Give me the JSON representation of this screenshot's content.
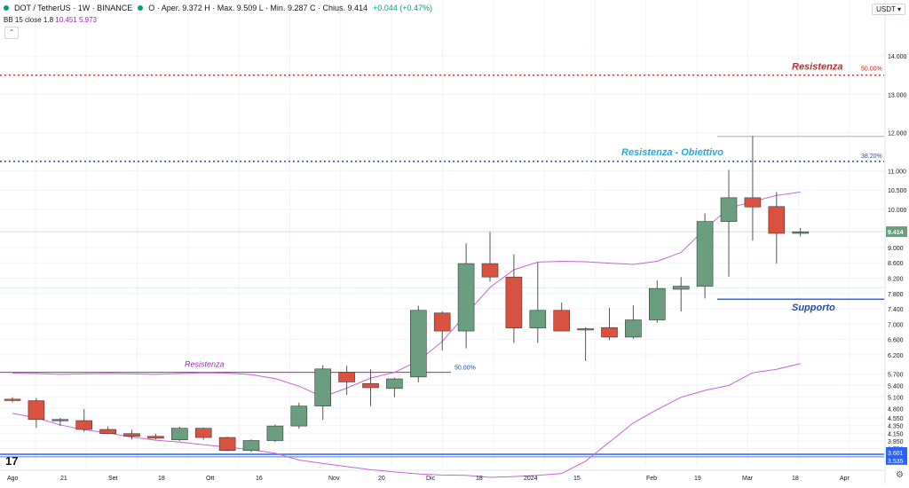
{
  "header": {
    "symbol": "DOT / TetherUS · 1W · BINANCE",
    "ohlc": "O · Aper. 9.372  H · Max. 9.509  L · Min. 9.287  C · Chius. 9.414",
    "change": "+0.044 (+0.47%)"
  },
  "indicator": {
    "label": "BB 15 close 1.8",
    "values": "10.451  5.973"
  },
  "currency": "USDT ▾",
  "logo": "17",
  "colors": {
    "up": "#6b9e7f",
    "down": "#d9513f",
    "band": "#c864d6",
    "accent": "#2962ff"
  },
  "chart_data": {
    "type": "candlestick",
    "title": "DOT / TetherUS · 1W · BINANCE",
    "xlabel": "",
    "ylabel": "",
    "ylim": [
      3.3,
      15.0
    ],
    "y_ticks": [
      "14.000",
      "13.000",
      "12.000",
      "11.000",
      "10.500",
      "10.000",
      "9.500",
      "9.000",
      "8.600",
      "8.200",
      "7.800",
      "7.400",
      "7.000",
      "6.600",
      "6.200",
      "5.700",
      "5.400",
      "5.100",
      "4.800",
      "4.550",
      "4.350",
      "4.150",
      "3.950",
      "3.750"
    ],
    "x_ticks": [
      "Ago",
      "21",
      "Set",
      "18",
      "Ott",
      "16",
      "Nov",
      "20",
      "Dic",
      "18",
      "2024",
      "15",
      "Feb",
      "19",
      "Mar",
      "18",
      "Apr"
    ],
    "last_price": "9.414",
    "candles": [
      {
        "o": 5.04,
        "h": 5.09,
        "l": 4.96,
        "c": 5.01
      },
      {
        "o": 5.0,
        "h": 5.07,
        "l": 4.29,
        "c": 4.51
      },
      {
        "o": 4.51,
        "h": 4.55,
        "l": 4.34,
        "c": 4.48
      },
      {
        "o": 4.48,
        "h": 4.78,
        "l": 4.19,
        "c": 4.25
      },
      {
        "o": 4.25,
        "h": 4.33,
        "l": 4.13,
        "c": 4.14
      },
      {
        "o": 4.14,
        "h": 4.24,
        "l": 3.99,
        "c": 4.07
      },
      {
        "o": 4.07,
        "h": 4.14,
        "l": 3.99,
        "c": 4.02
      },
      {
        "o": 3.98,
        "h": 4.32,
        "l": 3.95,
        "c": 4.28
      },
      {
        "o": 4.28,
        "h": 4.3,
        "l": 3.98,
        "c": 4.04
      },
      {
        "o": 4.04,
        "h": 4.06,
        "l": 3.68,
        "c": 3.7
      },
      {
        "o": 3.7,
        "h": 3.99,
        "l": 3.66,
        "c": 3.96
      },
      {
        "o": 3.96,
        "h": 4.38,
        "l": 3.92,
        "c": 4.34
      },
      {
        "o": 4.34,
        "h": 4.95,
        "l": 4.27,
        "c": 4.86
      },
      {
        "o": 4.86,
        "h": 5.93,
        "l": 4.5,
        "c": 5.83
      },
      {
        "o": 5.74,
        "h": 5.91,
        "l": 5.15,
        "c": 5.49
      },
      {
        "o": 5.45,
        "h": 5.82,
        "l": 4.86,
        "c": 5.34
      },
      {
        "o": 5.32,
        "h": 5.6,
        "l": 5.09,
        "c": 5.57
      },
      {
        "o": 5.62,
        "h": 7.48,
        "l": 5.48,
        "c": 7.36
      },
      {
        "o": 7.29,
        "h": 7.33,
        "l": 6.31,
        "c": 6.82
      },
      {
        "o": 6.82,
        "h": 9.11,
        "l": 6.37,
        "c": 8.58
      },
      {
        "o": 8.58,
        "h": 9.41,
        "l": 8.11,
        "c": 8.23
      },
      {
        "o": 8.23,
        "h": 8.82,
        "l": 6.51,
        "c": 6.9
      },
      {
        "o": 6.9,
        "h": 8.62,
        "l": 6.51,
        "c": 7.36
      },
      {
        "o": 7.36,
        "h": 7.56,
        "l": 6.82,
        "c": 6.82
      },
      {
        "o": 6.86,
        "h": 6.92,
        "l": 6.04,
        "c": 6.88
      },
      {
        "o": 6.91,
        "h": 7.42,
        "l": 6.58,
        "c": 6.66
      },
      {
        "o": 6.66,
        "h": 7.49,
        "l": 6.62,
        "c": 7.11
      },
      {
        "o": 7.11,
        "h": 8.14,
        "l": 7.03,
        "c": 7.93
      },
      {
        "o": 7.91,
        "h": 8.23,
        "l": 7.33,
        "c": 7.99
      },
      {
        "o": 7.99,
        "h": 9.89,
        "l": 7.67,
        "c": 9.68
      },
      {
        "o": 9.68,
        "h": 11.03,
        "l": 8.24,
        "c": 10.3
      },
      {
        "o": 10.3,
        "h": 11.91,
        "l": 9.18,
        "c": 10.06
      },
      {
        "o": 10.07,
        "h": 10.45,
        "l": 8.58,
        "c": 9.37
      },
      {
        "o": 9.37,
        "h": 9.51,
        "l": 9.29,
        "c": 9.41
      }
    ],
    "bands": {
      "upper": [
        5.72,
        5.71,
        5.69,
        5.7,
        5.71,
        5.7,
        5.69,
        5.71,
        5.73,
        5.72,
        5.68,
        5.58,
        5.38,
        5.1,
        5.33,
        5.59,
        5.74,
        6.04,
        6.55,
        7.26,
        7.96,
        8.42,
        8.62,
        8.64,
        8.63,
        8.59,
        8.56,
        8.64,
        8.87,
        9.48,
        10.03,
        10.2,
        10.36,
        10.45
      ],
      "lower": [
        4.67,
        4.55,
        4.37,
        4.24,
        4.16,
        4.05,
        3.97,
        3.92,
        3.85,
        3.79,
        3.72,
        3.63,
        3.45,
        3.36,
        3.28,
        3.2,
        3.14,
        3.09,
        3.06,
        3.05,
        3.0,
        3.02,
        3.05,
        3.1,
        3.42,
        3.92,
        4.42,
        4.77,
        5.09,
        5.27,
        5.4,
        5.73,
        5.82,
        5.97
      ]
    },
    "annotations": [
      {
        "text": "Resistenza",
        "price": 13.5
      },
      {
        "text": "50.00%",
        "price": 13.5
      },
      {
        "text": "Resistenza - Obiettivo",
        "price": 11.25
      },
      {
        "text": "38.20%",
        "price": 11.25
      },
      {
        "text": "Supporto",
        "price": 7.65
      },
      {
        "text": "Resistenza",
        "price": 5.74
      },
      {
        "text": "50.00%",
        "price": 5.74
      },
      {
        "text": "3.601",
        "price": 3.6
      },
      {
        "text": "3.535",
        "price": 3.535
      }
    ]
  }
}
